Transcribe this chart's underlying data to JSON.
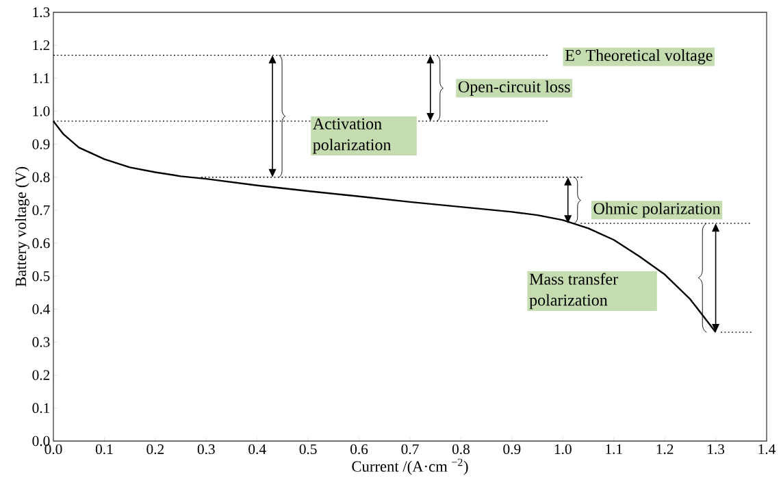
{
  "chart_data": {
    "type": "line",
    "xlabel": "Current /(A·cm $^{−2}$)",
    "ylabel": "Battery voltage (V)",
    "xlim": [
      0,
      1.4
    ],
    "ylim": [
      0,
      1.3
    ],
    "xticks": [
      {
        "value": 0,
        "label": "0.0"
      },
      {
        "value": 0.1,
        "label": "0.1"
      },
      {
        "value": 0.2,
        "label": "0.2"
      },
      {
        "value": 0.3,
        "label": "0.3"
      },
      {
        "value": 0.4,
        "label": "0.4"
      },
      {
        "value": 0.5,
        "label": "0.5"
      },
      {
        "value": 0.6,
        "label": "0.6"
      },
      {
        "value": 0.7,
        "label": "0.7"
      },
      {
        "value": 0.8,
        "label": "0.8"
      },
      {
        "value": 0.9,
        "label": "0.9"
      },
      {
        "value": 1,
        "label": "1.0"
      },
      {
        "value": 1.1,
        "label": "1.1"
      },
      {
        "value": 1.2,
        "label": "1.2"
      },
      {
        "value": 1.3,
        "label": "1.3"
      },
      {
        "value": 1.4,
        "label": "1.4"
      }
    ],
    "yticks": [
      {
        "value": 0,
        "label": "0.0"
      },
      {
        "value": 0.1,
        "label": "0.1"
      },
      {
        "value": 0.2,
        "label": "0.2"
      },
      {
        "value": 0.3,
        "label": "0.3"
      },
      {
        "value": 0.4,
        "label": "0.4"
      },
      {
        "value": 0.5,
        "label": "0.5"
      },
      {
        "value": 0.6,
        "label": "0.6"
      },
      {
        "value": 0.7,
        "label": "0.7"
      },
      {
        "value": 0.8,
        "label": "0.8"
      },
      {
        "value": 0.9,
        "label": "0.9"
      },
      {
        "value": 1,
        "label": "1.0"
      },
      {
        "value": 1.1,
        "label": "1.1"
      },
      {
        "value": 1.2,
        "label": "1.2"
      },
      {
        "value": 1.3,
        "label": "1.3"
      }
    ],
    "grid": false,
    "marker": "none",
    "series": [
      {
        "color": "#000000",
        "line_style": "solid",
        "x": [
          0,
          0.02,
          0.05,
          0.1,
          0.15,
          0.2,
          0.25,
          0.3,
          0.4,
          0.5,
          0.6,
          0.7,
          0.8,
          0.9,
          0.95,
          1.0,
          1.05,
          1.1,
          1.15,
          1.2,
          1.25,
          1.3
        ],
        "values": [
          0.97,
          0.93,
          0.89,
          0.855,
          0.83,
          0.815,
          0.803,
          0.795,
          0.775,
          0.758,
          0.742,
          0.725,
          0.71,
          0.695,
          0.685,
          0.67,
          0.645,
          0.61,
          0.56,
          0.505,
          0.43,
          0.33
        ]
      },
      {
        "color": "#000000",
        "line_style": "dotted",
        "x": [
          0,
          0.97
        ],
        "values": [
          1.17,
          1.17
        ]
      },
      {
        "color": "#000000",
        "line_style": "dotted",
        "x": [
          0,
          0.97
        ],
        "values": [
          0.97,
          0.97
        ]
      },
      {
        "color": "#000000",
        "line_style": "dotted",
        "x": [
          0.29,
          1.04
        ],
        "values": [
          0.8,
          0.8
        ]
      },
      {
        "color": "#000000",
        "line_style": "dotted",
        "x": [
          1.035,
          1.37
        ],
        "values": [
          0.66,
          0.66
        ]
      },
      {
        "color": "#000000",
        "line_style": "dotted",
        "x": [
          1.31,
          1.37
        ],
        "values": [
          0.33,
          0.33
        ]
      }
    ],
    "annotations": [
      "E° Theoretical voltage",
      "Open-circuit loss",
      "Activation polarization",
      {
        "text": "Ohmic polarization",
        "x": 1.0,
        "y": 0.67
      },
      "Mass transfer polarization"
    ]
  }
}
